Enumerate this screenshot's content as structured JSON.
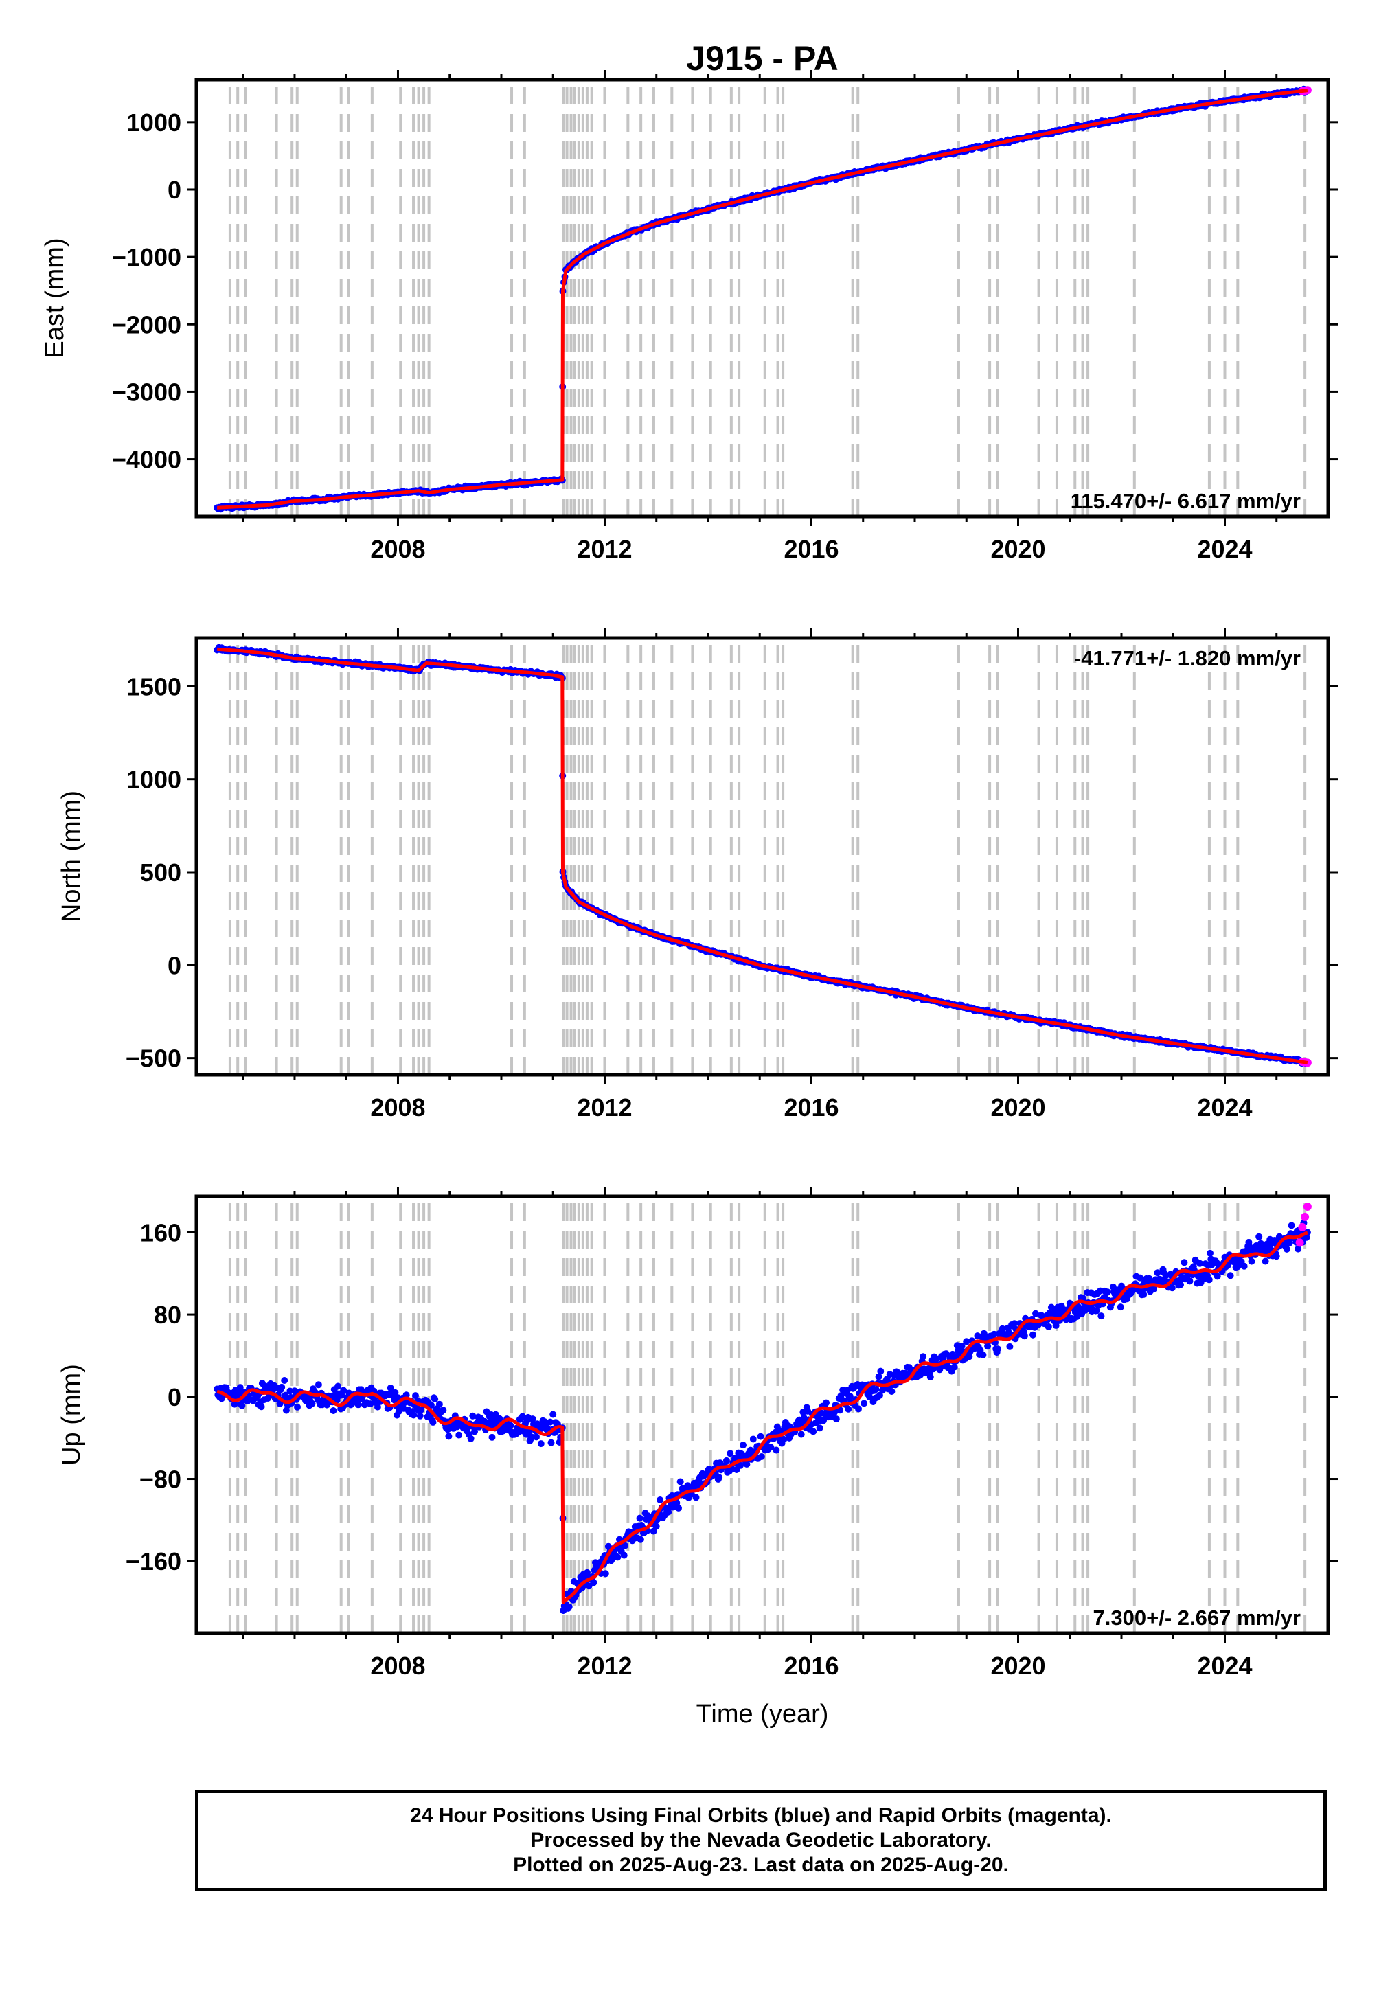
{
  "chart_data": [
    {
      "type": "scatter",
      "title": "J915 - PA",
      "panel": "east",
      "ylabel": "East (mm)",
      "xlabel": "",
      "xlim": [
        2004.1,
        2026.0
      ],
      "ylim": [
        -4850,
        1630
      ],
      "yticks": [
        -4000,
        -3000,
        -2000,
        -1000,
        0,
        1000
      ],
      "ytick_labels": [
        "−4000",
        "−3000",
        "−2000",
        "−1000",
        "0",
        "1000"
      ],
      "xticks": [
        2008,
        2012,
        2016,
        2020,
        2024
      ],
      "xtick_labels": [
        "2008",
        "2012",
        "2016",
        "2020",
        "2024"
      ],
      "rate_label": "115.470+/- 6.617 mm/yr",
      "rate_position": "bottom-right",
      "grid": false,
      "series": [
        {
          "name": "Final Orbits",
          "color": "#0000ff",
          "x": [
            2004.5,
            2005.0,
            2005.5,
            2006.0,
            2006.5,
            2007.0,
            2007.5,
            2008.0,
            2008.4,
            2008.6,
            2009.0,
            2009.5,
            2010.0,
            2010.5,
            2011.0,
            2011.18,
            2011.19,
            2011.25,
            2011.4,
            2011.6,
            2012.0,
            2012.5,
            2013.0,
            2014.0,
            2015.0,
            2016.0,
            2017.0,
            2018.0,
            2019.0,
            2020.0,
            2021.0,
            2022.0,
            2023.0,
            2024.0,
            2025.0,
            2025.6
          ],
          "y": [
            -4720,
            -4700,
            -4680,
            -4620,
            -4600,
            -4560,
            -4530,
            -4500,
            -4470,
            -4500,
            -4450,
            -4420,
            -4380,
            -4350,
            -4320,
            -4310,
            -1500,
            -1200,
            -1080,
            -960,
            -800,
            -640,
            -500,
            -290,
            -90,
            100,
            270,
            430,
            590,
            750,
            900,
            1050,
            1190,
            1310,
            1420,
            1470
          ]
        },
        {
          "name": "Rapid Orbits",
          "color": "#ff00ff",
          "x": [
            2025.5,
            2025.55,
            2025.6
          ],
          "y": [
            1460,
            1465,
            1475
          ]
        },
        {
          "name": "Model",
          "color": "#ff0000",
          "x": [
            2004.5,
            2005.0,
            2005.5,
            2006.0,
            2006.5,
            2007.0,
            2007.5,
            2008.0,
            2008.4,
            2008.6,
            2009.0,
            2009.5,
            2010.0,
            2010.5,
            2011.0,
            2011.18,
            2011.19,
            2011.25,
            2011.4,
            2011.6,
            2012.0,
            2012.5,
            2013.0,
            2014.0,
            2015.0,
            2016.0,
            2017.0,
            2018.0,
            2019.0,
            2020.0,
            2021.0,
            2022.0,
            2023.0,
            2024.0,
            2025.0,
            2025.6
          ],
          "y": [
            -4720,
            -4700,
            -4680,
            -4620,
            -4600,
            -4560,
            -4530,
            -4500,
            -4470,
            -4500,
            -4450,
            -4420,
            -4380,
            -4350,
            -4320,
            -4310,
            -1500,
            -1200,
            -1080,
            -960,
            -800,
            -640,
            -500,
            -290,
            -90,
            100,
            270,
            430,
            590,
            750,
            900,
            1050,
            1190,
            1310,
            1420,
            1470
          ]
        }
      ]
    },
    {
      "type": "scatter",
      "panel": "north",
      "ylabel": "North (mm)",
      "xlabel": "",
      "xlim": [
        2004.1,
        2026.0
      ],
      "ylim": [
        -590,
        1760
      ],
      "yticks": [
        -500,
        0,
        500,
        1000,
        1500
      ],
      "ytick_labels": [
        "−500",
        "0",
        "500",
        "1000",
        "1500"
      ],
      "xticks": [
        2008,
        2012,
        2016,
        2020,
        2024
      ],
      "xtick_labels": [
        "2008",
        "2012",
        "2016",
        "2020",
        "2024"
      ],
      "rate_label": "-41.771+/- 1.820 mm/yr",
      "rate_position": "top-right",
      "grid": false,
      "series": [
        {
          "name": "Final Orbits",
          "color": "#0000ff",
          "x": [
            2004.5,
            2005.0,
            2005.5,
            2006.0,
            2006.5,
            2007.0,
            2007.5,
            2008.0,
            2008.4,
            2008.55,
            2009.0,
            2009.5,
            2010.0,
            2010.5,
            2011.0,
            2011.18,
            2011.19,
            2011.25,
            2011.5,
            2012.0,
            2012.5,
            2013.0,
            2014.0,
            2015.0,
            2016.0,
            2017.0,
            2018.0,
            2019.0,
            2020.0,
            2021.0,
            2022.0,
            2023.0,
            2024.0,
            2025.0,
            2025.6
          ],
          "y": [
            1700,
            1690,
            1675,
            1650,
            1640,
            1625,
            1612,
            1600,
            1585,
            1625,
            1615,
            1600,
            1585,
            1575,
            1560,
            1550,
            500,
            420,
            340,
            270,
            210,
            160,
            80,
            0,
            -60,
            -115,
            -170,
            -230,
            -280,
            -325,
            -380,
            -420,
            -460,
            -500,
            -525
          ]
        },
        {
          "name": "Rapid Orbits",
          "color": "#ff00ff",
          "x": [
            2025.5,
            2025.55,
            2025.6
          ],
          "y": [
            -520,
            -522,
            -525
          ]
        },
        {
          "name": "Model",
          "color": "#ff0000",
          "x": [
            2004.5,
            2005.0,
            2005.5,
            2006.0,
            2006.5,
            2007.0,
            2007.5,
            2008.0,
            2008.4,
            2008.55,
            2009.0,
            2009.5,
            2010.0,
            2010.5,
            2011.0,
            2011.18,
            2011.19,
            2011.25,
            2011.5,
            2012.0,
            2012.5,
            2013.0,
            2014.0,
            2015.0,
            2016.0,
            2017.0,
            2018.0,
            2019.0,
            2020.0,
            2021.0,
            2022.0,
            2023.0,
            2024.0,
            2025.0,
            2025.6
          ],
          "y": [
            1700,
            1690,
            1675,
            1650,
            1640,
            1625,
            1612,
            1600,
            1585,
            1625,
            1615,
            1600,
            1585,
            1575,
            1560,
            1550,
            500,
            420,
            340,
            270,
            210,
            160,
            80,
            0,
            -60,
            -115,
            -170,
            -230,
            -280,
            -325,
            -380,
            -420,
            -460,
            -500,
            -525
          ]
        }
      ]
    },
    {
      "type": "scatter",
      "panel": "up",
      "ylabel": "Up (mm)",
      "xlabel": "Time (year)",
      "xlim": [
        2004.1,
        2026.0
      ],
      "ylim": [
        -230,
        195
      ],
      "yticks": [
        -160,
        -80,
        0,
        80,
        160
      ],
      "ytick_labels": [
        "−160",
        "−80",
        "0",
        "80",
        "160"
      ],
      "xticks": [
        2008,
        2012,
        2016,
        2020,
        2024
      ],
      "xtick_labels": [
        "2008",
        "2012",
        "2016",
        "2020",
        "2024"
      ],
      "rate_label": "7.300+/- 2.667 mm/yr",
      "rate_position": "bottom-right",
      "grid": false,
      "series": [
        {
          "name": "Final Orbits",
          "color": "#0000ff",
          "x": [
            2004.5,
            2005.0,
            2005.5,
            2006.0,
            2006.5,
            2007.0,
            2007.5,
            2008.0,
            2008.5,
            2009.0,
            2009.5,
            2010.0,
            2010.5,
            2011.0,
            2011.18,
            2011.2,
            2011.5,
            2012.0,
            2012.5,
            2013.0,
            2013.5,
            2014.0,
            2014.5,
            2015.0,
            2015.5,
            2016.0,
            2016.5,
            2017.0,
            2017.5,
            2018.0,
            2018.5,
            2019.0,
            2019.5,
            2020.0,
            2020.5,
            2021.0,
            2021.5,
            2022.0,
            2022.5,
            2023.0,
            2023.5,
            2024.0,
            2024.5,
            2025.0,
            2025.6
          ],
          "y": [
            5,
            0,
            4,
            -2,
            2,
            -5,
            3,
            -6,
            -8,
            -25,
            -28,
            -26,
            -30,
            -32,
            -35,
            -205,
            -185,
            -160,
            -135,
            -115,
            -95,
            -80,
            -65,
            -50,
            -35,
            -20,
            -10,
            5,
            12,
            25,
            32,
            45,
            55,
            65,
            75,
            85,
            92,
            100,
            108,
            115,
            122,
            130,
            138,
            145,
            160
          ]
        },
        {
          "name": "Rapid Orbits",
          "color": "#ff00ff",
          "x": [
            2025.45,
            2025.5,
            2025.55,
            2025.6
          ],
          "y": [
            150,
            165,
            175,
            185
          ]
        },
        {
          "name": "Model",
          "color": "#ff0000",
          "x": [
            2004.5,
            2005.0,
            2005.5,
            2006.0,
            2006.5,
            2007.0,
            2007.5,
            2008.0,
            2008.5,
            2009.0,
            2009.5,
            2010.0,
            2010.5,
            2011.0,
            2011.18,
            2011.2,
            2011.5,
            2012.0,
            2012.5,
            2013.0,
            2013.5,
            2014.0,
            2014.5,
            2015.0,
            2015.5,
            2016.0,
            2016.5,
            2017.0,
            2017.5,
            2018.0,
            2018.5,
            2019.0,
            2019.5,
            2020.0,
            2020.5,
            2021.0,
            2021.5,
            2022.0,
            2022.5,
            2023.0,
            2023.5,
            2024.0,
            2024.5,
            2025.0,
            2025.6
          ],
          "y": [
            5,
            0,
            4,
            -2,
            2,
            -5,
            3,
            -6,
            -8,
            -25,
            -28,
            -26,
            -30,
            -32,
            -35,
            -205,
            -185,
            -160,
            -135,
            -115,
            -95,
            -80,
            -65,
            -50,
            -35,
            -20,
            -10,
            5,
            12,
            25,
            32,
            45,
            55,
            65,
            75,
            85,
            92,
            100,
            108,
            115,
            122,
            130,
            138,
            145,
            160
          ]
        }
      ]
    }
  ],
  "event_lines_x": [
    2004.75,
    2004.9,
    2005.05,
    2005.65,
    2005.95,
    2006.05,
    2006.9,
    2007.05,
    2007.5,
    2008.05,
    2008.3,
    2008.4,
    2008.5,
    2008.6,
    2010.2,
    2010.45,
    2011.2,
    2011.27,
    2011.35,
    2011.42,
    2011.5,
    2011.58,
    2011.66,
    2011.75,
    2012.0,
    2012.45,
    2012.7,
    2012.95,
    2013.3,
    2013.7,
    2014.05,
    2014.45,
    2014.6,
    2015.1,
    2015.35,
    2015.45,
    2016.8,
    2016.9,
    2018.85,
    2019.45,
    2019.6,
    2020.4,
    2020.75,
    2021.1,
    2021.25,
    2021.35,
    2022.25,
    2023.7,
    2024.0,
    2024.25,
    2025.55
  ],
  "footer": {
    "line1": "24 Hour Positions Using Final Orbits (blue) and Rapid Orbits (magenta).",
    "line2": "Processed by the Nevada Geodetic Laboratory.",
    "line3": "Plotted on 2025-Aug-23. Last data on 2025-Aug-20."
  }
}
